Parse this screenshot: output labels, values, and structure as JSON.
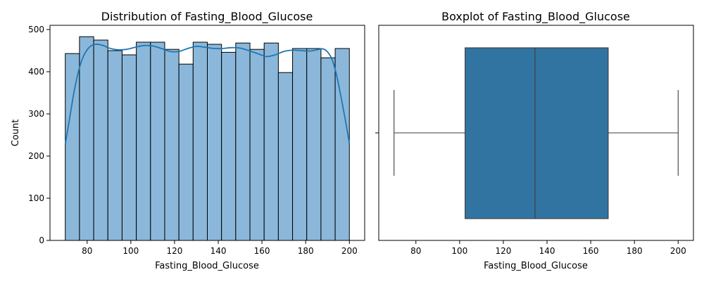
{
  "chart_data": [
    {
      "type": "bar",
      "subtype": "histogram-with-kde",
      "title": "Distribution of Fasting_Blood_Glucose",
      "xlabel": "Fasting_Blood_Glucose",
      "ylabel": "Count",
      "xlim": [
        63,
        207
      ],
      "ylim": [
        0,
        510
      ],
      "xticks": [
        80,
        100,
        120,
        140,
        160,
        180,
        200
      ],
      "yticks": [
        0,
        100,
        200,
        300,
        400,
        500
      ],
      "bins": [
        {
          "start": 70.0,
          "end": 76.5,
          "count": 443
        },
        {
          "start": 76.5,
          "end": 83.0,
          "count": 483
        },
        {
          "start": 83.0,
          "end": 89.5,
          "count": 475
        },
        {
          "start": 89.5,
          "end": 96.0,
          "count": 450
        },
        {
          "start": 96.0,
          "end": 102.5,
          "count": 440
        },
        {
          "start": 102.5,
          "end": 109.0,
          "count": 470
        },
        {
          "start": 109.0,
          "end": 115.5,
          "count": 470
        },
        {
          "start": 115.5,
          "end": 122.0,
          "count": 453
        },
        {
          "start": 122.0,
          "end": 128.5,
          "count": 418
        },
        {
          "start": 128.5,
          "end": 135.0,
          "count": 470
        },
        {
          "start": 135.0,
          "end": 141.5,
          "count": 465
        },
        {
          "start": 141.5,
          "end": 148.0,
          "count": 446
        },
        {
          "start": 148.0,
          "end": 154.5,
          "count": 468
        },
        {
          "start": 154.5,
          "end": 161.0,
          "count": 453
        },
        {
          "start": 161.0,
          "end": 167.5,
          "count": 468
        },
        {
          "start": 167.5,
          "end": 174.0,
          "count": 398
        },
        {
          "start": 174.0,
          "end": 180.5,
          "count": 455
        },
        {
          "start": 180.5,
          "end": 187.0,
          "count": 455
        },
        {
          "start": 187.0,
          "end": 193.5,
          "count": 433
        },
        {
          "start": 193.5,
          "end": 200.0,
          "count": 455
        }
      ],
      "kde": {
        "x": [
          70,
          72,
          74,
          76,
          78,
          80,
          82,
          84,
          86,
          88,
          90,
          94,
          98,
          102,
          106,
          110,
          114,
          118,
          122,
          126,
          130,
          134,
          138,
          142,
          146,
          150,
          154,
          158,
          162,
          166,
          170,
          174,
          178,
          182,
          186,
          188,
          190,
          192,
          194,
          196,
          198,
          200
        ],
        "y": [
          228,
          290,
          352,
          400,
          433,
          452,
          462,
          465,
          464,
          461,
          456,
          452,
          453,
          458,
          462,
          461,
          455,
          448,
          448,
          455,
          460,
          458,
          455,
          455,
          457,
          456,
          450,
          443,
          436,
          440,
          448,
          451,
          450,
          449,
          453,
          454,
          447,
          430,
          395,
          345,
          290,
          230
        ]
      },
      "colors": {
        "bar_fill": "#8bb8da",
        "bar_edge": "#000000",
        "kde_line": "#1f77b4"
      },
      "grid": false
    },
    {
      "type": "boxplot",
      "title": "Boxplot of Fasting_Blood_Glucose",
      "xlabel": "Fasting_Blood_Glucose",
      "xlim": [
        63,
        207
      ],
      "xticks": [
        80,
        100,
        120,
        140,
        160,
        180,
        200
      ],
      "stats": {
        "whisker_low": 70,
        "q1": 102.5,
        "median": 134.5,
        "q3": 168,
        "whisker_high": 200
      },
      "colors": {
        "box_fill": "#3274a1",
        "line": "#3d3d3d"
      },
      "grid": false
    }
  ]
}
